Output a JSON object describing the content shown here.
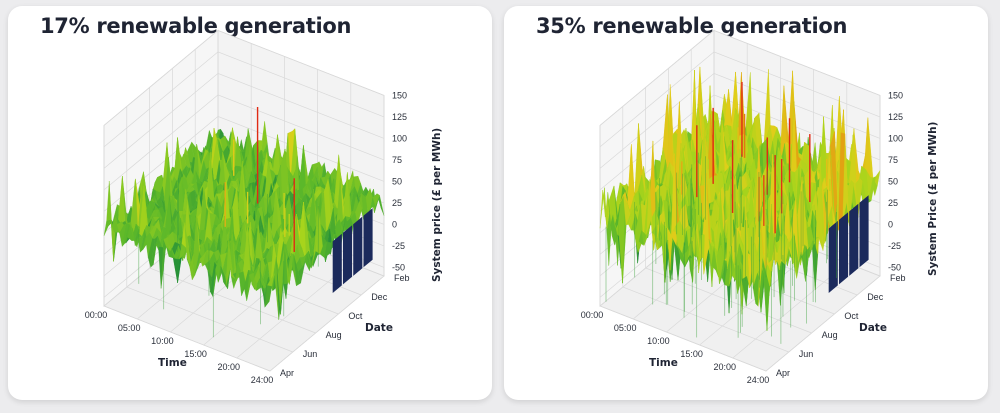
{
  "chart_data": [
    {
      "type": "surface3d",
      "title": "17% renewable generation",
      "xlabel": "Time",
      "ylabel": "Date",
      "zlabel": "System price (£ per MWh)",
      "x_ticks": [
        "00:00",
        "05:00",
        "10:00",
        "15:00",
        "20:00",
        "24:00"
      ],
      "y_ticks": [
        "Apr",
        "Jun",
        "Aug",
        "Oct",
        "Dec",
        "Feb"
      ],
      "z_ticks": [
        150,
        125,
        100,
        75,
        50,
        25,
        0,
        -25,
        -50
      ],
      "zlim": [
        -60,
        150
      ],
      "surface": {
        "typical_price": 30,
        "price_spread": 20,
        "spike_max": 150,
        "colorscale": [
          "#1b2a5c",
          "#1e8a3a",
          "#5cb82a",
          "#a8d41c",
          "#e0cf1a",
          "#e29a12",
          "#e02a14"
        ]
      }
    },
    {
      "type": "surface3d",
      "title": "35% renewable generation",
      "xlabel": "Time",
      "ylabel": "Date",
      "zlabel": "System Price (£ per MWh)",
      "x_ticks": [
        "00:00",
        "05:00",
        "10:00",
        "15:00",
        "20:00",
        "24:00"
      ],
      "y_ticks": [
        "Apr",
        "Jun",
        "Aug",
        "Oct",
        "Dec",
        "Feb"
      ],
      "z_ticks": [
        150,
        125,
        100,
        75,
        50,
        25,
        0,
        -25,
        -50
      ],
      "zlim": [
        -60,
        150
      ],
      "surface": {
        "typical_price": 45,
        "price_spread": 35,
        "spike_max": 150,
        "colorscale": [
          "#1b2a5c",
          "#1e8a3a",
          "#5cb82a",
          "#a8d41c",
          "#e0cf1a",
          "#e29a12",
          "#e02a14"
        ]
      }
    }
  ]
}
